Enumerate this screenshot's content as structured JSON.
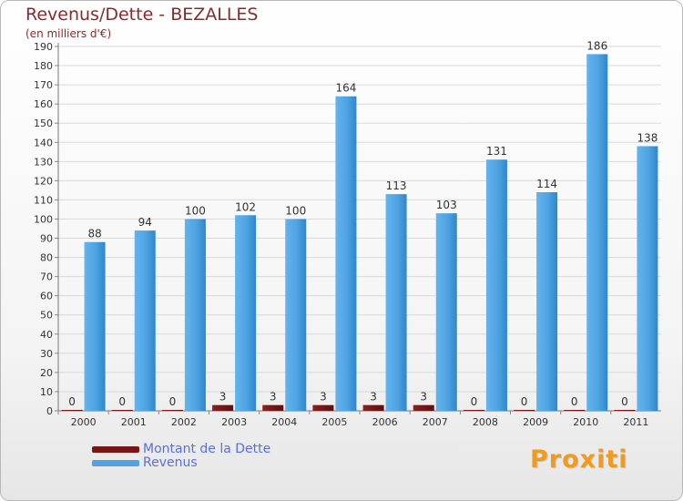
{
  "header": {
    "title": "Revenus/Dette - BEZALLES",
    "subtitle": "(en milliers d'€)"
  },
  "logo": {
    "text": "Proxiti"
  },
  "colors": {
    "debt": "#7a1515",
    "revenue": "#4fa3e2",
    "revenue_dark": "#2a7fc4",
    "grid": "#d9d9d9",
    "title": "#8a2b2b",
    "legend_text": "#5b6fdc"
  },
  "chart_data": {
    "type": "bar",
    "title": "Revenus/Dette - BEZALLES",
    "subtitle": "(en milliers d'€)",
    "xlabel": "",
    "ylabel": "",
    "ylim": [
      0,
      190
    ],
    "ytick_step": 10,
    "grid": true,
    "categories": [
      "2000",
      "2001",
      "2002",
      "2003",
      "2004",
      "2005",
      "2006",
      "2007",
      "2008",
      "2009",
      "2010",
      "2011"
    ],
    "series": [
      {
        "name": "Montant de la Dette",
        "values": [
          0,
          0,
          0,
          3,
          3,
          3,
          3,
          3,
          0,
          0,
          0,
          0
        ]
      },
      {
        "name": "Revenus",
        "values": [
          88,
          94,
          100,
          102,
          100,
          164,
          113,
          103,
          131,
          114,
          186,
          138
        ]
      }
    ],
    "legend_position": "bottom-left"
  }
}
